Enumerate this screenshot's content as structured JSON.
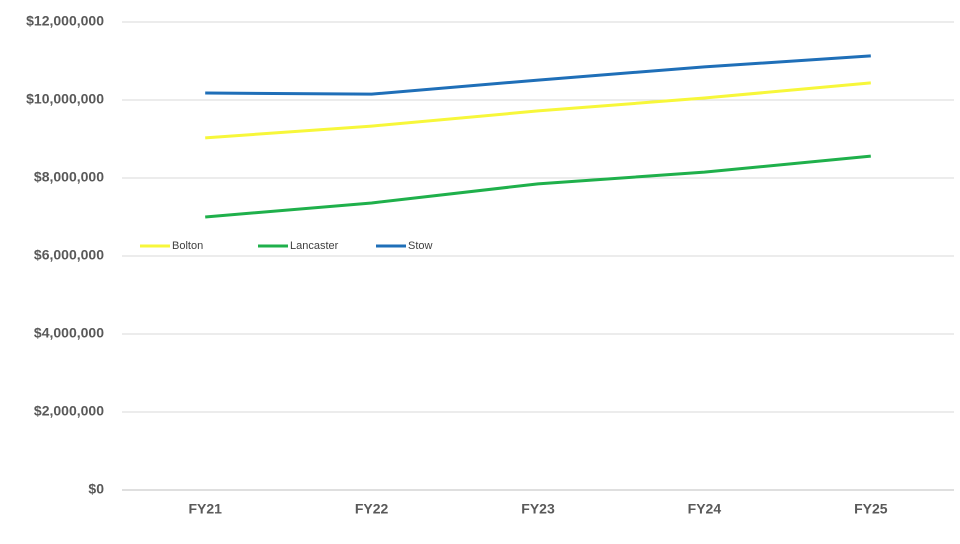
{
  "chart_data": {
    "type": "line",
    "categories": [
      "FY21",
      "FY22",
      "FY23",
      "FY24",
      "FY25"
    ],
    "series": [
      {
        "name": "Bolton",
        "color": "#f7f73a",
        "values": [
          9030000,
          9330000,
          9720000,
          10050000,
          10440000
        ]
      },
      {
        "name": "Lancaster",
        "color": "#1fb04b",
        "values": [
          7000000,
          7360000,
          7850000,
          8150000,
          8560000
        ]
      },
      {
        "name": "Stow",
        "color": "#1f6fb8",
        "values": [
          10180000,
          10150000,
          10510000,
          10850000,
          11130000
        ]
      }
    ],
    "ylim": [
      0,
      12000000
    ],
    "yticks": [
      {
        "value": 0,
        "label": "$0"
      },
      {
        "value": 2000000,
        "label": "$2,000,000"
      },
      {
        "value": 4000000,
        "label": "$4,000,000"
      },
      {
        "value": 6000000,
        "label": "$6,000,000"
      },
      {
        "value": 8000000,
        "label": "$8,000,000"
      },
      {
        "value": 10000000,
        "label": "$10,000,000"
      },
      {
        "value": 12000000,
        "label": "$12,000,000"
      }
    ],
    "grid": true,
    "legend": "center left"
  }
}
